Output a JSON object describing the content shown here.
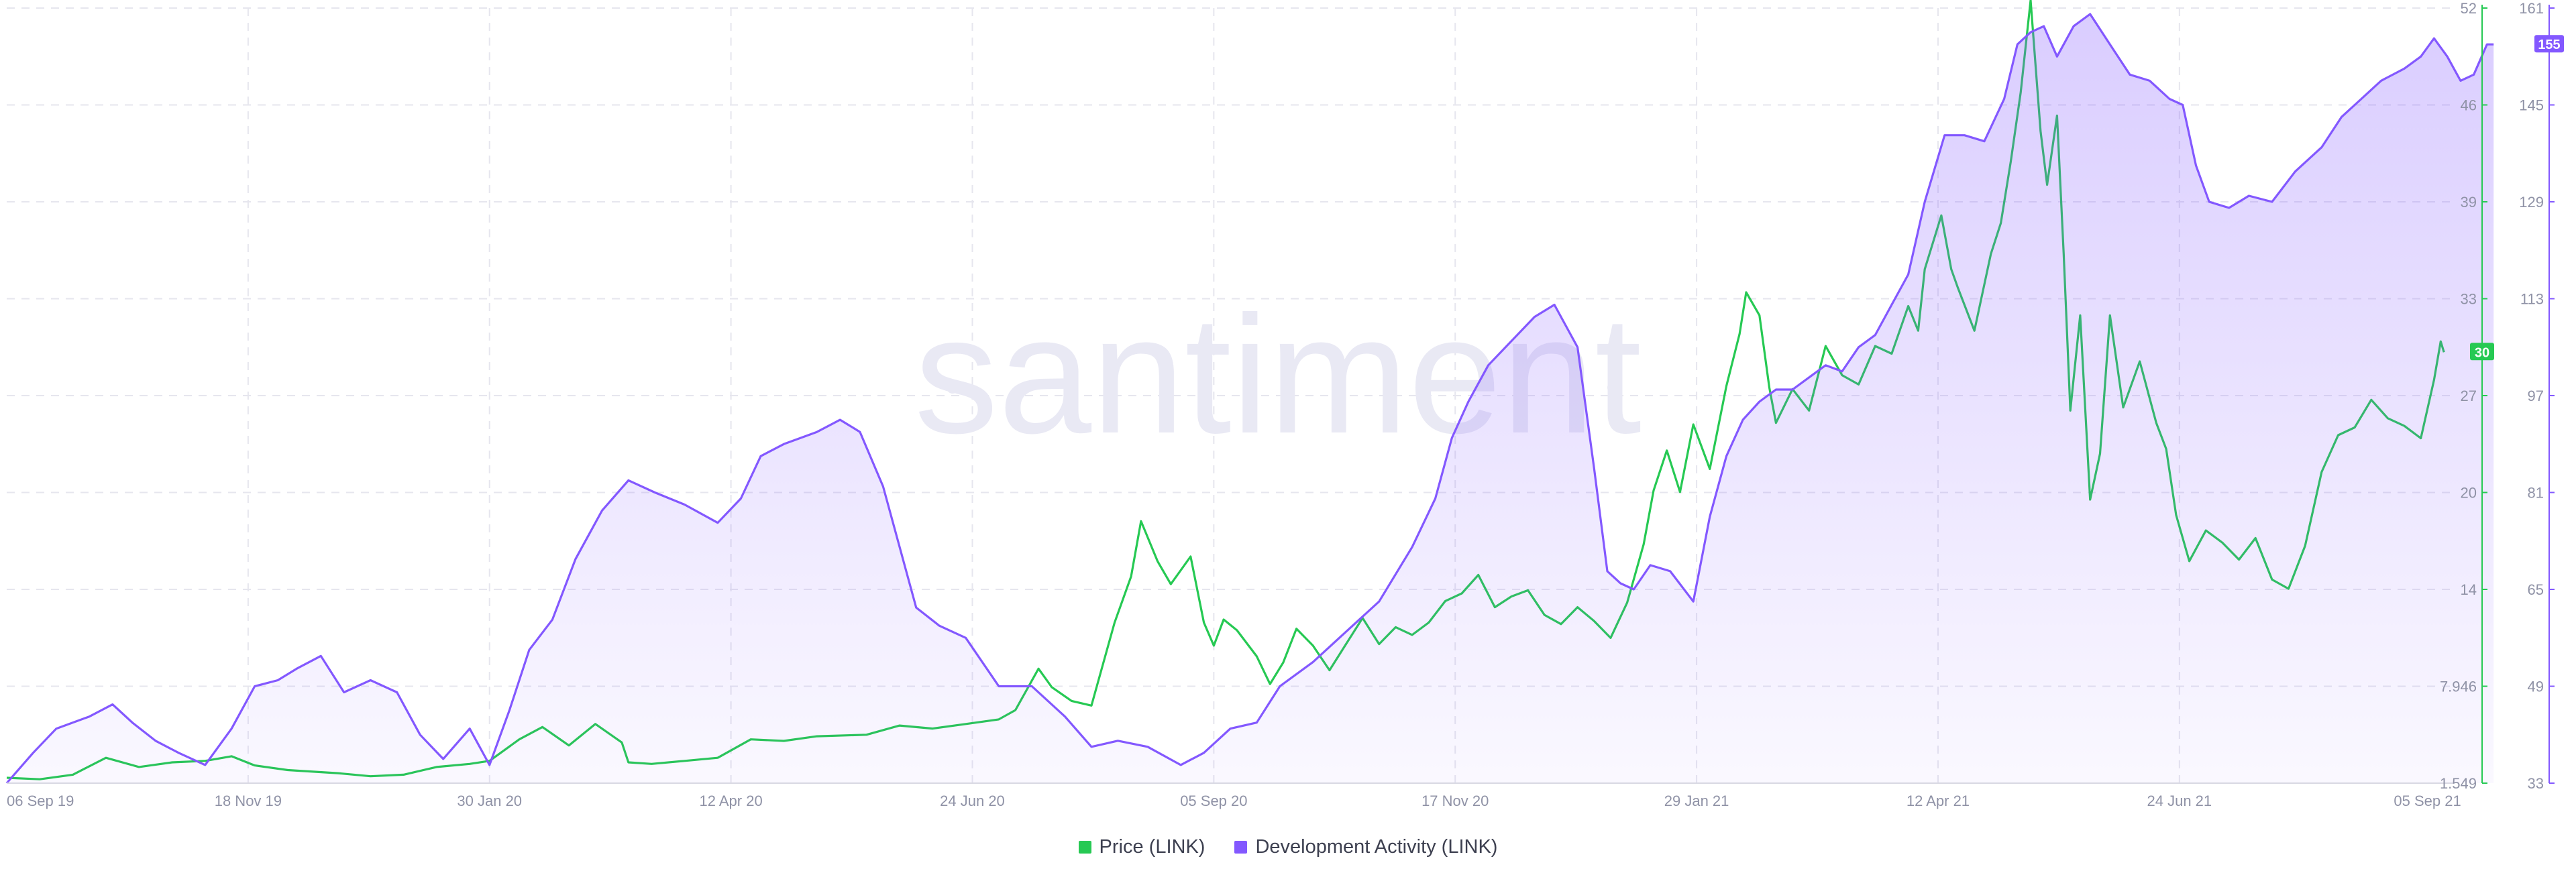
{
  "chart_data": {
    "type": "line",
    "watermark": "santiment",
    "x_tick_labels": [
      "06 Sep 19",
      "18 Nov 19",
      "30 Jan 20",
      "12 Apr 20",
      "24 Jun 20",
      "05 Sep 20",
      "17 Nov 20",
      "29 Jan 21",
      "12 Apr 21",
      "24 Jun 21",
      "05 Sep 21"
    ],
    "x_tick_positions_days": [
      0,
      73,
      146,
      219,
      292,
      365,
      438,
      511,
      584,
      657,
      730
    ],
    "price_axis": {
      "ticks": [
        "1.549",
        "7.946",
        "14",
        "20",
        "27",
        "33",
        "39",
        "46",
        "52"
      ],
      "ylim": [
        1.549,
        52
      ],
      "color": "#26c953"
    },
    "dev_axis": {
      "ticks": [
        "33",
        "49",
        "65",
        "81",
        "97",
        "113",
        "129",
        "145",
        "161"
      ],
      "ylim": [
        33,
        161
      ],
      "color": "#8358ff"
    },
    "current_price_label": "30",
    "current_dev_label": "155",
    "series": [
      {
        "name": "Price (LINK)",
        "color": "#26c953",
        "axis": "price",
        "points": [
          [
            0,
            1.9
          ],
          [
            10,
            1.8
          ],
          [
            20,
            2.1
          ],
          [
            30,
            3.2
          ],
          [
            40,
            2.6
          ],
          [
            50,
            2.9
          ],
          [
            60,
            3.0
          ],
          [
            68,
            3.3
          ],
          [
            75,
            2.7
          ],
          [
            85,
            2.4
          ],
          [
            100,
            2.2
          ],
          [
            110,
            2.0
          ],
          [
            120,
            2.1
          ],
          [
            130,
            2.6
          ],
          [
            140,
            2.8
          ],
          [
            146,
            3.0
          ],
          [
            155,
            4.4
          ],
          [
            162,
            5.2
          ],
          [
            170,
            4.0
          ],
          [
            178,
            5.4
          ],
          [
            186,
            4.2
          ],
          [
            188,
            2.9
          ],
          [
            195,
            2.8
          ],
          [
            205,
            3.0
          ],
          [
            215,
            3.2
          ],
          [
            225,
            4.4
          ],
          [
            235,
            4.3
          ],
          [
            245,
            4.6
          ],
          [
            260,
            4.7
          ],
          [
            270,
            5.3
          ],
          [
            280,
            5.1
          ],
          [
            290,
            5.4
          ],
          [
            300,
            5.7
          ],
          [
            305,
            6.3
          ],
          [
            312,
            9.0
          ],
          [
            316,
            7.8
          ],
          [
            322,
            6.9
          ],
          [
            328,
            6.6
          ],
          [
            335,
            12.0
          ],
          [
            340,
            15.0
          ],
          [
            343,
            18.6
          ],
          [
            348,
            16.0
          ],
          [
            352,
            14.5
          ],
          [
            358,
            16.3
          ],
          [
            362,
            12.0
          ],
          [
            365,
            10.5
          ],
          [
            368,
            12.2
          ],
          [
            372,
            11.5
          ],
          [
            378,
            9.8
          ],
          [
            382,
            8.0
          ],
          [
            386,
            9.4
          ],
          [
            390,
            11.6
          ],
          [
            395,
            10.5
          ],
          [
            400,
            8.9
          ],
          [
            405,
            10.6
          ],
          [
            410,
            12.3
          ],
          [
            415,
            10.6
          ],
          [
            420,
            11.7
          ],
          [
            425,
            11.2
          ],
          [
            430,
            12.0
          ],
          [
            435,
            13.4
          ],
          [
            440,
            13.9
          ],
          [
            445,
            15.1
          ],
          [
            450,
            13.0
          ],
          [
            455,
            13.7
          ],
          [
            460,
            14.1
          ],
          [
            465,
            12.5
          ],
          [
            470,
            11.9
          ],
          [
            475,
            13.0
          ],
          [
            480,
            12.1
          ],
          [
            485,
            11.0
          ],
          [
            490,
            13.3
          ],
          [
            495,
            17.1
          ],
          [
            498,
            20.6
          ],
          [
            502,
            23.2
          ],
          [
            506,
            20.5
          ],
          [
            510,
            24.9
          ],
          [
            515,
            22.0
          ],
          [
            520,
            27.4
          ],
          [
            524,
            30.8
          ],
          [
            526,
            33.5
          ],
          [
            530,
            32.0
          ],
          [
            533,
            27.3
          ],
          [
            535,
            25.0
          ],
          [
            540,
            27.2
          ],
          [
            545,
            25.8
          ],
          [
            550,
            30.0
          ],
          [
            555,
            28.1
          ],
          [
            560,
            27.5
          ],
          [
            565,
            30.0
          ],
          [
            570,
            29.5
          ],
          [
            575,
            32.6
          ],
          [
            578,
            31.0
          ],
          [
            580,
            35.0
          ],
          [
            585,
            38.5
          ],
          [
            588,
            35.0
          ],
          [
            590,
            33.8
          ],
          [
            595,
            31.0
          ],
          [
            600,
            36.0
          ],
          [
            603,
            38.0
          ],
          [
            606,
            42.0
          ],
          [
            609,
            46.5
          ],
          [
            612,
            52.5
          ],
          [
            615,
            44.0
          ],
          [
            617,
            40.5
          ],
          [
            620,
            45.0
          ],
          [
            622,
            36.0
          ],
          [
            624,
            25.8
          ],
          [
            627,
            32.0
          ],
          [
            630,
            20.0
          ],
          [
            633,
            23.0
          ],
          [
            636,
            32.0
          ],
          [
            640,
            26.0
          ],
          [
            645,
            29.0
          ],
          [
            650,
            25.0
          ],
          [
            653,
            23.3
          ],
          [
            656,
            19.0
          ],
          [
            660,
            16.0
          ],
          [
            665,
            18.0
          ],
          [
            670,
            17.2
          ],
          [
            675,
            16.1
          ],
          [
            680,
            17.5
          ],
          [
            685,
            14.8
          ],
          [
            690,
            14.2
          ],
          [
            695,
            17.0
          ],
          [
            700,
            21.8
          ],
          [
            705,
            24.2
          ],
          [
            710,
            24.7
          ],
          [
            715,
            26.5
          ],
          [
            720,
            25.3
          ],
          [
            725,
            24.8
          ],
          [
            730,
            24.0
          ],
          [
            734,
            27.8
          ],
          [
            736,
            30.3
          ],
          [
            737,
            29.6
          ]
        ]
      },
      {
        "name": "Development Activity (LINK)",
        "color": "#8358ff",
        "axis": "dev",
        "points": [
          [
            0,
            33
          ],
          [
            8,
            38
          ],
          [
            15,
            42
          ],
          [
            25,
            44
          ],
          [
            32,
            46
          ],
          [
            38,
            43
          ],
          [
            45,
            40
          ],
          [
            52,
            38
          ],
          [
            60,
            36
          ],
          [
            68,
            42
          ],
          [
            75,
            49
          ],
          [
            82,
            50
          ],
          [
            88,
            52
          ],
          [
            95,
            54
          ],
          [
            102,
            48
          ],
          [
            110,
            50
          ],
          [
            118,
            48
          ],
          [
            125,
            41
          ],
          [
            132,
            37
          ],
          [
            140,
            42
          ],
          [
            146,
            36
          ],
          [
            152,
            45
          ],
          [
            158,
            55
          ],
          [
            165,
            60
          ],
          [
            172,
            70
          ],
          [
            180,
            78
          ],
          [
            188,
            83
          ],
          [
            196,
            81
          ],
          [
            205,
            79
          ],
          [
            215,
            76
          ],
          [
            222,
            80
          ],
          [
            228,
            87
          ],
          [
            235,
            89
          ],
          [
            245,
            91
          ],
          [
            252,
            93
          ],
          [
            258,
            91
          ],
          [
            265,
            82
          ],
          [
            275,
            62
          ],
          [
            282,
            59
          ],
          [
            290,
            57
          ],
          [
            300,
            49
          ],
          [
            310,
            49
          ],
          [
            320,
            44
          ],
          [
            328,
            39
          ],
          [
            336,
            40
          ],
          [
            345,
            39
          ],
          [
            355,
            36
          ],
          [
            362,
            38
          ],
          [
            370,
            42
          ],
          [
            378,
            43
          ],
          [
            385,
            49
          ],
          [
            395,
            53
          ],
          [
            405,
            58
          ],
          [
            415,
            63
          ],
          [
            425,
            72
          ],
          [
            432,
            80
          ],
          [
            437,
            90
          ],
          [
            442,
            96
          ],
          [
            448,
            102
          ],
          [
            455,
            106
          ],
          [
            462,
            110
          ],
          [
            468,
            112
          ],
          [
            475,
            105
          ],
          [
            480,
            85
          ],
          [
            484,
            68
          ],
          [
            488,
            66
          ],
          [
            492,
            65
          ],
          [
            497,
            69
          ],
          [
            503,
            68
          ],
          [
            510,
            63
          ],
          [
            515,
            77
          ],
          [
            520,
            87
          ],
          [
            525,
            93
          ],
          [
            530,
            96
          ],
          [
            535,
            98
          ],
          [
            540,
            98
          ],
          [
            545,
            100
          ],
          [
            550,
            102
          ],
          [
            555,
            101
          ],
          [
            560,
            105
          ],
          [
            565,
            107
          ],
          [
            570,
            112
          ],
          [
            575,
            117
          ],
          [
            580,
            129
          ],
          [
            586,
            140
          ],
          [
            592,
            140
          ],
          [
            598,
            139
          ],
          [
            604,
            146
          ],
          [
            608,
            155
          ],
          [
            612,
            157
          ],
          [
            616,
            158
          ],
          [
            620,
            153
          ],
          [
            625,
            158
          ],
          [
            630,
            160
          ],
          [
            636,
            155
          ],
          [
            642,
            150
          ],
          [
            648,
            149
          ],
          [
            654,
            146
          ],
          [
            658,
            145
          ],
          [
            662,
            135
          ],
          [
            666,
            129
          ],
          [
            672,
            128
          ],
          [
            678,
            130
          ],
          [
            685,
            129
          ],
          [
            692,
            134
          ],
          [
            700,
            138
          ],
          [
            706,
            143
          ],
          [
            712,
            146
          ],
          [
            718,
            149
          ],
          [
            725,
            151
          ],
          [
            730,
            153
          ],
          [
            734,
            156
          ],
          [
            738,
            153
          ],
          [
            742,
            149
          ],
          [
            746,
            150
          ],
          [
            750,
            155
          ],
          [
            752,
            155
          ]
        ]
      }
    ],
    "grid": true
  },
  "legend": [
    {
      "label": "Price (LINK)",
      "color": "#26c953"
    },
    {
      "label": "Development Activity (LINK)",
      "color": "#8358ff"
    }
  ]
}
